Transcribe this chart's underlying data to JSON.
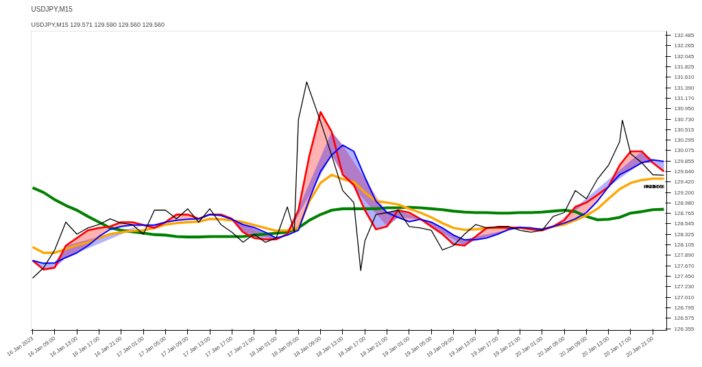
{
  "chart_data": {
    "type": "line",
    "title": "USDJPY,M15",
    "subtitle": "USDJPY,M15  129.571 129.590 129.560 129.560",
    "x": [
      "2023-01-16T05:00",
      "2023-01-16T07:00",
      "2023-01-16T09:00",
      "2023-01-16T11:00",
      "2023-01-16T13:00",
      "2023-01-16T15:00",
      "2023-01-16T17:00",
      "2023-01-16T19:00",
      "2023-01-16T21:00",
      "2023-01-16T23:00",
      "2023-01-17T01:00",
      "2023-01-17T03:00",
      "2023-01-17T05:00",
      "2023-01-17T07:00",
      "2023-01-17T09:00",
      "2023-01-17T11:00",
      "2023-01-17T13:00",
      "2023-01-17T15:00",
      "2023-01-17T17:00",
      "2023-01-17T19:00",
      "2023-01-17T21:00",
      "2023-01-17T23:00",
      "2023-01-18T01:00",
      "2023-01-18T03:00",
      "2023-01-18T05:00",
      "2023-01-18T07:00",
      "2023-01-18T09:00",
      "2023-01-18T11:00",
      "2023-01-18T13:00",
      "2023-01-18T15:00",
      "2023-01-18T17:00",
      "2023-01-18T19:00",
      "2023-01-18T21:00",
      "2023-01-18T23:00",
      "2023-01-19T01:00",
      "2023-01-19T03:00",
      "2023-01-19T05:00",
      "2023-01-19T07:00",
      "2023-01-19T09:00",
      "2023-01-19T11:00",
      "2023-01-19T13:00",
      "2023-01-19T15:00",
      "2023-01-19T17:00",
      "2023-01-19T19:00",
      "2023-01-19T21:00",
      "2023-01-19T23:00",
      "2023-01-20T01:00",
      "2023-01-20T03:00",
      "2023-01-20T05:00",
      "2023-01-20T07:00",
      "2023-01-20T09:00",
      "2023-01-20T11:00",
      "2023-01-20T13:00",
      "2023-01-20T15:00",
      "2023-01-20T17:00",
      "2023-01-20T19:00",
      "2023-01-20T21:00",
      "2023-01-20T23:00"
    ],
    "series": [
      {
        "color": "#008000",
        "values": [
          129.3,
          129.2,
          129.05,
          128.93,
          128.83,
          128.7,
          128.58,
          128.46,
          128.41,
          128.38,
          128.35,
          128.32,
          128.31,
          128.28,
          128.27,
          128.27,
          128.28,
          128.28,
          128.28,
          128.28,
          128.31,
          128.33,
          128.35,
          128.37,
          128.46,
          128.62,
          128.74,
          128.83,
          128.86,
          128.86,
          128.86,
          128.86,
          128.88,
          128.88,
          128.89,
          128.88,
          128.86,
          128.84,
          128.81,
          128.79,
          128.78,
          128.78,
          128.77,
          128.77,
          128.78,
          128.78,
          128.79,
          128.81,
          128.83,
          128.8,
          128.7,
          128.63,
          128.64,
          128.68,
          128.77,
          128.8,
          128.84,
          128.85
        ]
      },
      {
        "color": "#ffa500",
        "values": [
          128.06,
          127.94,
          127.94,
          128.02,
          128.1,
          128.16,
          128.25,
          128.33,
          128.37,
          128.4,
          128.41,
          128.46,
          128.53,
          128.56,
          128.58,
          128.59,
          128.65,
          128.64,
          128.62,
          128.58,
          128.52,
          128.46,
          128.4,
          128.41,
          128.46,
          129.02,
          129.4,
          129.57,
          129.48,
          129.42,
          129.2,
          129.02,
          128.99,
          128.95,
          128.86,
          128.78,
          128.68,
          128.56,
          128.46,
          128.42,
          128.43,
          128.46,
          128.46,
          128.46,
          128.46,
          128.43,
          128.43,
          128.49,
          128.53,
          128.62,
          128.72,
          128.86,
          129.07,
          129.27,
          129.4,
          129.46,
          129.49,
          129.49
        ]
      },
      {
        "color": "#ff0000",
        "values": [
          127.78,
          127.59,
          127.63,
          128.09,
          128.25,
          128.41,
          128.46,
          128.49,
          128.58,
          128.58,
          128.52,
          128.46,
          128.58,
          128.74,
          128.74,
          128.65,
          128.74,
          128.74,
          128.65,
          128.37,
          128.25,
          128.22,
          128.22,
          128.33,
          128.83,
          129.98,
          130.88,
          130.47,
          129.57,
          129.36,
          128.83,
          128.43,
          128.49,
          128.83,
          128.78,
          128.65,
          128.49,
          128.33,
          128.12,
          128.09,
          128.28,
          128.46,
          128.47,
          128.46,
          128.47,
          128.43,
          128.41,
          128.49,
          128.62,
          128.9,
          128.99,
          129.15,
          129.32,
          129.77,
          130.06,
          130.06,
          129.82,
          129.64
        ],
        "lower": [
          null,
          null,
          127.63,
          127.84,
          127.94,
          128.09,
          128.28,
          128.43,
          128.49,
          128.52,
          128.52,
          null,
          128.58,
          128.62,
          128.64,
          128.65,
          128.74,
          128.72,
          128.64,
          128.37,
          null,
          null,
          128.22,
          128.31,
          128.41,
          129.07,
          129.64,
          129.98,
          129.57,
          null,
          null,
          null,
          128.49,
          128.68,
          128.59,
          128.64,
          128.49,
          null,
          null,
          128.09,
          128.21,
          128.25,
          128.33,
          128.43,
          128.47,
          null,
          null,
          128.49,
          128.56,
          128.65,
          128.78,
          129.02,
          129.32,
          129.57,
          129.69,
          129.82,
          129.82,
          null
        ],
        "upper": [
          null,
          null,
          127.73,
          128.09,
          128.25,
          128.41,
          128.46,
          128.49,
          128.58,
          128.58,
          128.52,
          null,
          128.58,
          128.74,
          128.74,
          128.65,
          128.74,
          128.74,
          128.65,
          128.53,
          null,
          null,
          128.25,
          128.33,
          128.83,
          129.98,
          130.88,
          130.47,
          130.19,
          null,
          null,
          null,
          128.78,
          128.83,
          128.78,
          128.65,
          128.58,
          null,
          null,
          128.21,
          128.28,
          128.46,
          128.47,
          128.46,
          128.47,
          null,
          null,
          128.49,
          128.62,
          128.9,
          128.99,
          129.15,
          129.32,
          129.77,
          130.06,
          130.06,
          129.88,
          null
        ]
      },
      {
        "color": "#0000ff",
        "values": [
          127.78,
          127.72,
          127.73,
          127.84,
          127.94,
          128.09,
          128.28,
          128.43,
          128.49,
          128.52,
          128.52,
          128.52,
          128.58,
          128.62,
          128.64,
          128.65,
          128.74,
          128.72,
          128.64,
          128.53,
          128.47,
          128.37,
          128.25,
          128.31,
          128.41,
          129.07,
          129.64,
          129.98,
          130.19,
          130.06,
          129.52,
          129.02,
          128.78,
          128.68,
          128.59,
          128.64,
          128.58,
          128.46,
          128.31,
          128.21,
          128.21,
          128.25,
          128.33,
          128.43,
          128.47,
          128.46,
          128.43,
          128.49,
          128.56,
          128.65,
          128.78,
          129.02,
          129.32,
          129.57,
          129.69,
          129.82,
          129.88,
          129.85
        ],
        "lower": [
          127.78,
          127.59,
          127.63,
          127.84,
          null,
          null,
          null,
          null,
          null,
          null,
          128.52,
          128.46,
          128.58,
          null,
          null,
          null,
          null,
          null,
          128.64,
          128.37,
          128.25,
          128.22,
          128.22,
          128.31,
          null,
          null,
          null,
          129.98,
          129.57,
          129.36,
          128.83,
          128.43,
          128.49,
          128.68,
          null,
          128.64,
          128.49,
          128.33,
          128.12,
          128.09,
          128.21,
          null,
          null,
          null,
          128.47,
          128.43,
          128.41,
          128.49,
          null,
          null,
          null,
          null,
          null,
          null,
          null,
          129.82,
          129.82,
          129.64
        ],
        "upper": [
          127.78,
          127.72,
          127.73,
          128.09,
          null,
          null,
          null,
          null,
          null,
          null,
          128.52,
          128.52,
          128.58,
          null,
          null,
          null,
          null,
          null,
          128.65,
          128.53,
          128.47,
          128.37,
          128.25,
          128.33,
          null,
          null,
          null,
          130.47,
          130.19,
          130.06,
          129.52,
          129.02,
          128.78,
          128.83,
          null,
          128.65,
          128.58,
          128.46,
          128.31,
          128.21,
          128.28,
          null,
          null,
          null,
          128.47,
          128.46,
          128.43,
          128.49,
          null,
          null,
          null,
          null,
          null,
          null,
          null,
          130.06,
          129.88,
          129.85
        ]
      },
      {
        "color": "#000000",
        "x": [
          "2023-01-16T05:00",
          "2023-01-16T07:00",
          "2023-01-16T09:00",
          "2023-01-16T11:00",
          "2023-01-16T13:00",
          "2023-01-16T15:00",
          "2023-01-16T17:00",
          "2023-01-16T19:00",
          "2023-01-16T21:00",
          "2023-01-16T23:00",
          "2023-01-17T01:00",
          "2023-01-17T03:00",
          "2023-01-17T05:00",
          "2023-01-17T07:00",
          "2023-01-17T09:00",
          "2023-01-17T11:00",
          "2023-01-17T13:00",
          "2023-01-17T15:00",
          "2023-01-17T17:00",
          "2023-01-17T19:00",
          "2023-01-17T21:00",
          "2023-01-17T23:00",
          "2023-01-18T01:00",
          "2023-01-18T03:00",
          "2023-01-18T04:15",
          "2023-01-18T05:00",
          "2023-01-18T06:30",
          "2023-01-18T07:00",
          "2023-01-18T09:00",
          "2023-01-18T11:00",
          "2023-01-18T13:00",
          "2023-01-18T15:00",
          "2023-01-18T16:15",
          "2023-01-18T17:00",
          "2023-01-18T19:00",
          "2023-01-18T21:00",
          "2023-01-18T23:00",
          "2023-01-19T01:00",
          "2023-01-19T03:00",
          "2023-01-19T05:00",
          "2023-01-19T07:00",
          "2023-01-19T09:00",
          "2023-01-19T11:00",
          "2023-01-19T13:00",
          "2023-01-19T15:00",
          "2023-01-19T17:00",
          "2023-01-19T19:00",
          "2023-01-19T21:00",
          "2023-01-19T23:00",
          "2023-01-20T01:00",
          "2023-01-20T03:00",
          "2023-01-20T05:00",
          "2023-01-20T07:00",
          "2023-01-20T09:00",
          "2023-01-20T11:00",
          "2023-01-20T13:00",
          "2023-01-20T15:00",
          "2023-01-20T15:30",
          "2023-01-20T17:00",
          "2023-01-20T19:00",
          "2023-01-20T21:00",
          "2023-01-20T23:00"
        ],
        "values": [
          127.41,
          127.63,
          128.0,
          128.58,
          128.33,
          128.46,
          128.53,
          128.65,
          128.56,
          128.53,
          128.33,
          128.83,
          128.83,
          128.65,
          128.86,
          128.58,
          128.86,
          128.53,
          128.37,
          128.16,
          128.33,
          128.16,
          128.25,
          128.9,
          128.37,
          130.72,
          131.51,
          131.34,
          130.68,
          129.98,
          129.24,
          128.99,
          127.57,
          128.19,
          128.74,
          128.78,
          128.83,
          128.49,
          128.46,
          128.41,
          128.0,
          128.09,
          128.33,
          128.53,
          128.46,
          128.49,
          128.49,
          128.41,
          128.37,
          128.41,
          128.7,
          128.78,
          129.24,
          129.07,
          129.48,
          129.77,
          130.26,
          130.71,
          130.01,
          129.82,
          129.57,
          129.56
        ]
      }
    ],
    "xlim": [
      "2023-01-16T04:45",
      "2023-01-20T23:30"
    ],
    "xticks": [
      {
        "value": "2023-01-16T05:00",
        "label": "16 Jan 2023"
      },
      {
        "value": "2023-01-16T09:00",
        "label": "16 Jan 09:00"
      },
      {
        "value": "2023-01-16T13:00",
        "label": "16 Jan 13:00"
      },
      {
        "value": "2023-01-16T17:00",
        "label": "16 Jan 17:00"
      },
      {
        "value": "2023-01-16T21:00",
        "label": "16 Jan 21:00"
      },
      {
        "value": "2023-01-17T01:00",
        "label": "17 Jan 01:00"
      },
      {
        "value": "2023-01-17T05:00",
        "label": "17 Jan 05:00"
      },
      {
        "value": "2023-01-17T09:00",
        "label": "17 Jan 09:00"
      },
      {
        "value": "2023-01-17T13:00",
        "label": "17 Jan 13:00"
      },
      {
        "value": "2023-01-17T17:00",
        "label": "17 Jan 17:00"
      },
      {
        "value": "2023-01-17T21:00",
        "label": "17 Jan 21:00"
      },
      {
        "value": "2023-01-18T01:00",
        "label": "18 Jan 01:00"
      },
      {
        "value": "2023-01-18T05:00",
        "label": "18 Jan 05:00"
      },
      {
        "value": "2023-01-18T09:00",
        "label": "18 Jan 09:00"
      },
      {
        "value": "2023-01-18T13:00",
        "label": "18 Jan 13:00"
      },
      {
        "value": "2023-01-18T17:00",
        "label": "18 Jan 17:00"
      },
      {
        "value": "2023-01-18T21:00",
        "label": "18 Jan 21:00"
      },
      {
        "value": "2023-01-19T01:00",
        "label": "19 Jan 01:00"
      },
      {
        "value": "2023-01-19T05:00",
        "label": "19 Jan 05:00"
      },
      {
        "value": "2023-01-19T09:00",
        "label": "19 Jan 09:00"
      },
      {
        "value": "2023-01-19T13:00",
        "label": "19 Jan 13:00"
      },
      {
        "value": "2023-01-19T17:00",
        "label": "19 Jan 17:00"
      },
      {
        "value": "2023-01-19T21:00",
        "label": "19 Jan 21:00"
      },
      {
        "value": "2023-01-20T01:00",
        "label": "20 Jan 01:00"
      },
      {
        "value": "2023-01-20T05:00",
        "label": "20 Jan 05:00"
      },
      {
        "value": "2023-01-20T09:00",
        "label": "20 Jan 09:00"
      },
      {
        "value": "2023-01-20T13:00",
        "label": "20 Jan 13:00"
      },
      {
        "value": "2023-01-20T17:00",
        "label": "20 Jan 17:00"
      },
      {
        "value": "2023-01-20T21:00",
        "label": "20 Jan 21:00"
      }
    ],
    "ylim": [
      126.32,
      132.57
    ],
    "yticks": [
      132.485,
      {
        "value": 132.265,
        "label": "132.265"
      },
      {
        "value": 132.045,
        "label": "132.045"
      },
      131.825,
      {
        "value": 131.61,
        "label": "131.610"
      },
      {
        "value": 131.39,
        "label": "131.390"
      },
      {
        "value": 131.17,
        "label": "131.170"
      },
      {
        "value": 130.95,
        "label": "130.950"
      },
      {
        "value": 130.73,
        "label": "130.730"
      },
      130.515,
      130.295,
      130.075,
      129.855,
      {
        "value": 129.64,
        "label": "129.640"
      },
      {
        "value": 129.42,
        "label": "129.420"
      },
      {
        "value": 129.2,
        "label": "129.200"
      },
      {
        "value": 128.98,
        "label": "128.980"
      },
      128.765,
      128.545,
      128.325,
      128.105,
      {
        "value": 127.89,
        "label": "127.890"
      },
      {
        "value": 127.67,
        "label": "127.670"
      },
      {
        "value": 127.45,
        "label": "127.450"
      },
      {
        "value": 127.23,
        "label": "127.230"
      },
      {
        "value": 127.01,
        "label": "127.010"
      },
      126.795,
      126.575,
      126.355
    ],
    "annotations": [
      {
        "text": "129.560",
        "x": "2023-01-20T23:00",
        "y": 129.56
      }
    ]
  }
}
